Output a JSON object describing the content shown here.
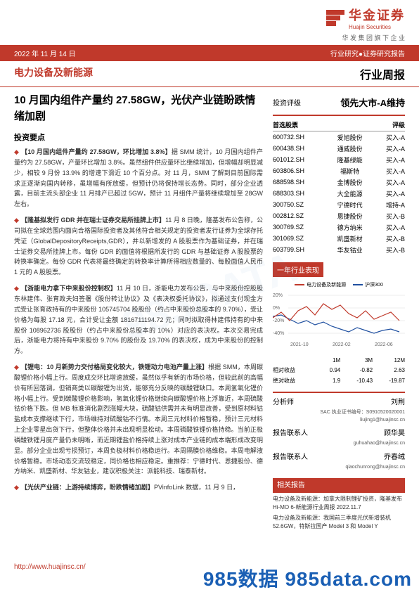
{
  "header": {
    "logo_cn": "华金证券",
    "logo_en": "Huajin Securities",
    "group": "华 发 集 团 旗 下 企 业",
    "breadcrumb": "行业研究●证券研究报告"
  },
  "redbar": {
    "date": "2022 年 11 月 14 日"
  },
  "sector": {
    "name": "电力设备及新能源",
    "report_type": "行业周报"
  },
  "title": "10 月国内组件产量约 27.58GW，光伏产业链盼跌情绪加剧",
  "points_label": "投资要点",
  "bullets": [
    {
      "lead": "【10 月国内组件产量约 27.58GW，环比增加 3.8%】",
      "body": "据 SMM 统计，10 月国内组件产量约为 27.58GW，产量环比增加 3.8%。虽然组件供应量环比继续增加，但增幅却明显减少，相较 9 月份 13.9% 的增速下滑近 10 个百分点。对 11 月，SMM 了解到目前国际需求正逐渐向国内转移，虽增幅有所放缓，但预计仍将保持增长态势。同时，部分企业透露，目前主流头部企业 11 月排产已超过 5GW，预计 11 月组件产量将继续增加至 28GW 左右。"
    },
    {
      "lead": "【隆基拟发行 GDR 并在瑞士证券交易所挂牌上市】",
      "body": "11 月 8 日晚，隆基发布公告称，公司拟在全球范围内面向合格国际投资者及其他符合相关规定的投资者发行证券为全球存托凭证（GlobalDepositoryReceipts,GDR），并以新增发的 A 股股票作为基础证券，并在瑞士证券交易所挂牌上市。每份 GDR 的面值将根据所发行的 GDR 与基础证券 A 股股票的转换率确定。每份 GDR 代表将最终确定的转换率计算所得相应数量的、每股面值人民币 1 元的 A 股股票。"
    },
    {
      "lead": "【浙能电力拿下中来股份控制权】",
      "body": "11 月 10 日，浙能电力发布公告，与中来股份控股股东林建伟、张育政夫妇签署《股份转让协议》及《表决权委托协议》，拟通过支付现金方式受让张育政持有的中来股份 105745704 股股份（约占中来股份总股本的 9.70%），受让价格为每股 17.18 元，合计受让金额 1816711194.72 元；同时拟取得林建伟持有的中来股份 108962736 股股份（约占中来股份总股本的 10%）对应的表决权。本次交易完成后，浙能电力将持有中来股份 9.70% 的股份及 19.70% 的表决权，成为中来股份的控制方。"
    },
    {
      "lead": "【锂电：10 月新势力交付格局变化较大，铁锂动力电池产量上涨】",
      "body": "根据 SMM，本周碳酸锂价格小幅上行。周度成交环比增速放缓，虽然似乎有新的市场价格，但较此前的高幅价有所回落调。但销商类以碳酸锂为出货，能够充分反映的碳酸锂缺口。本周氢氧化锂价格小幅上行。受到碳酸锂价格影响，氢氧化锂价格继续向碳酸锂价格上浮靠近，本周硫酸钴价格下跌。但 MB 标准消化剧烈涨幅大块，硫酸钴供需并未有明显改善，受到原材料钴盐成本支撑继续下行，市场维持对硫酸钴不行情。本周三元材料价格暂稳，预计三元材料上企业零星出货下行，但整体价格并未出现明显松动。本周磷酸铁锂价格持稳。当前正极磷酸铁锂月度产量仍未明晰，而近期锂盐价格持续上涨对成本产业链的成本端形成改变明显。部分企业出现亏损预订，本周负极材料价格稳运行。本周隔膜价格维稳。本周电解液价格暂稳。市场动态交流较稳定，同价格也相应稳定。重推荐：宁德时代、恩捷股份、德方纳米、凯盛新材、华友钴业，建议积极关注：派能科技、瑞泰新材。"
    },
    {
      "lead": "【光伏产业链：上游持续博弈，盼跌情绪加剧】",
      "body": "PVinfoLink 数据，11 月 9 日，"
    }
  ],
  "rating": {
    "label": "投资评级",
    "value": "领先大市-A维持"
  },
  "stocks": {
    "heading_left": "首选股票",
    "heading_right": "评级",
    "rows": [
      {
        "code": "600732.SH",
        "name": "爱旭股份",
        "rating": "买入-A"
      },
      {
        "code": "600438.SH",
        "name": "通威股份",
        "rating": "买入-A"
      },
      {
        "code": "601012.SH",
        "name": "隆基绿能",
        "rating": "买入-A"
      },
      {
        "code": "603806.SH",
        "name": "福斯特",
        "rating": "买入-A"
      },
      {
        "code": "688598.SH",
        "name": "金博股份",
        "rating": "买入-A"
      },
      {
        "code": "688303.SH",
        "name": "大全能源",
        "rating": "买入-A"
      },
      {
        "code": "300750.SZ",
        "name": "宁德时代",
        "rating": "增持-A"
      },
      {
        "code": "002812.SZ",
        "name": "恩捷股份",
        "rating": "买入-B"
      },
      {
        "code": "300769.SZ",
        "name": "德方纳米",
        "rating": "买入-A"
      },
      {
        "code": "301069.SZ",
        "name": "凯盛新材",
        "rating": "买入-B"
      },
      {
        "code": "603799.SH",
        "name": "华友钴业",
        "rating": "买入-B"
      }
    ]
  },
  "chart": {
    "heading": "一年行业表现",
    "legend": [
      {
        "label": "电力设备及新能源",
        "color": "#c0392b"
      },
      {
        "label": "沪深300",
        "color": "#2050a0"
      }
    ],
    "y_ticks": [
      "20%",
      "0%",
      "-20%",
      "-40%"
    ],
    "x_ticks": [
      "2021-10",
      "2022-02",
      "2022-06"
    ],
    "series": {
      "red": "0,40 12,32 24,44 36,30 48,24 60,36 72,20 84,28 96,22 108,34 120,40 132,30 144,42 156,37 168,32 180,44",
      "blue": "0,38 12,36 24,42 36,48 48,44 60,50 72,46 84,52 96,56 108,60 120,54 132,58 144,62 156,58 168,56 180,60"
    },
    "ylim": [
      -40,
      20
    ],
    "background": "#ffffff",
    "grid_color": "#dddddd"
  },
  "perf": {
    "cols": [
      "",
      "1M",
      "3M",
      "12M"
    ],
    "rows": [
      {
        "label": "相对收益",
        "v": [
          "0.94",
          "-0.82",
          "2.63"
        ]
      },
      {
        "label": "绝对收益",
        "v": [
          "1.9",
          "-10.43",
          "-19.87"
        ]
      }
    ]
  },
  "analysts": {
    "analyst_label": "分析师",
    "analyst_name": "刘荆",
    "analyst_sac": "SAC 执业证书编号：S0910520020001",
    "analyst_email": "liujing1@huajinsc.cn",
    "contacts": [
      {
        "label": "报告联系人",
        "name": "顾华昊",
        "email": "guhuahao@huajinsc.cn"
      },
      {
        "label": "报告联系人",
        "name": "乔春绒",
        "email": "qiaochunrong@huajinsc.cn"
      }
    ]
  },
  "related": {
    "heading": "相关报告",
    "items": [
      "电力设备及新能源：加拿大限制锂矿投资，隆基发布 Hi-MO 6-新能源行业周报 2022.11.7",
      "电力设备及新能源：我国前三季度光伏新增装机 52.6GW，特斯拉国产 Model 3 和 Model Y"
    ]
  },
  "footer_url": "http://www.huajinsc.cn/",
  "watermark": "985数据 985data.com"
}
